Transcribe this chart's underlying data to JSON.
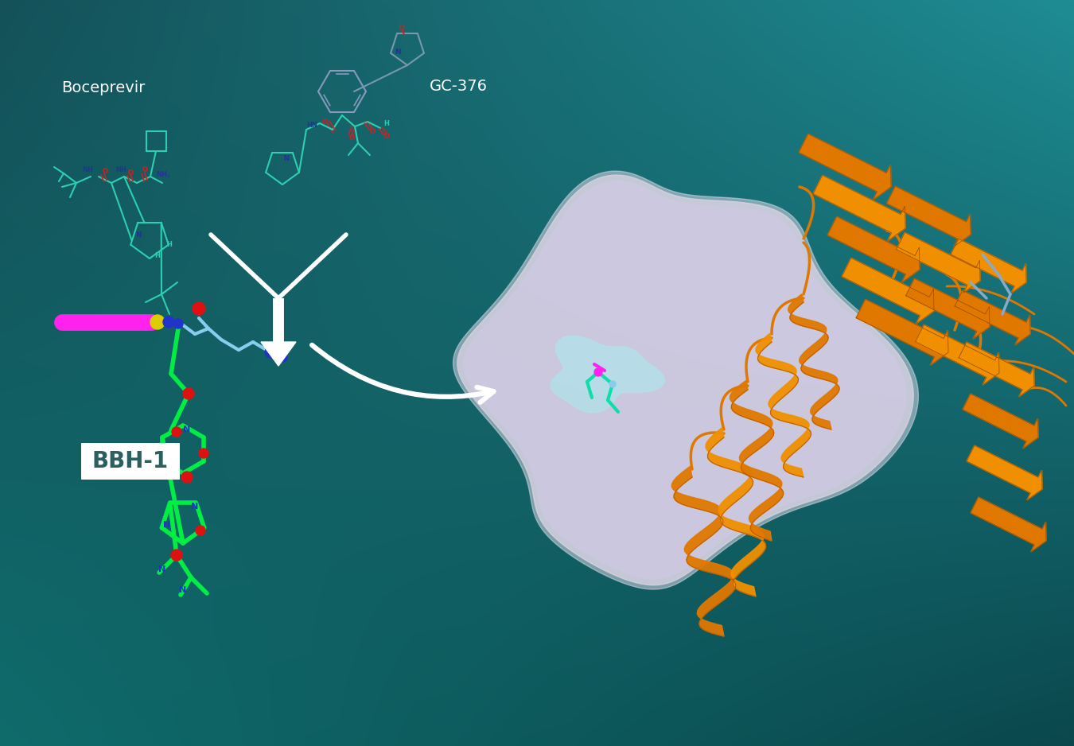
{
  "bg_tl": [
    0.08,
    0.32,
    0.35
  ],
  "bg_tr": [
    0.12,
    0.55,
    0.58
  ],
  "bg_bl": [
    0.06,
    0.42,
    0.42
  ],
  "bg_br": [
    0.04,
    0.28,
    0.3
  ],
  "label_boceprevir": "Boceprevir",
  "label_gc376": "GC-376",
  "label_bbh1": "BBH-1",
  "chem_carbon": "#2ecfb0",
  "chem_oxygen": "#cc2222",
  "chem_nitrogen": "#223399",
  "protein_surface": "#ddd5e5",
  "protein_highlight": "#aae8ee",
  "ribbon_orange": "#e07800",
  "ribbon_orange2": "#f09000",
  "mol_green": "#00ee44",
  "mol_blue": "#2233cc",
  "mol_red": "#dd1111",
  "mol_magenta": "#ff22ee",
  "mol_cyan": "#88ccee",
  "mol_yellow": "#ddcc00",
  "arrow_white": "#ffffff"
}
